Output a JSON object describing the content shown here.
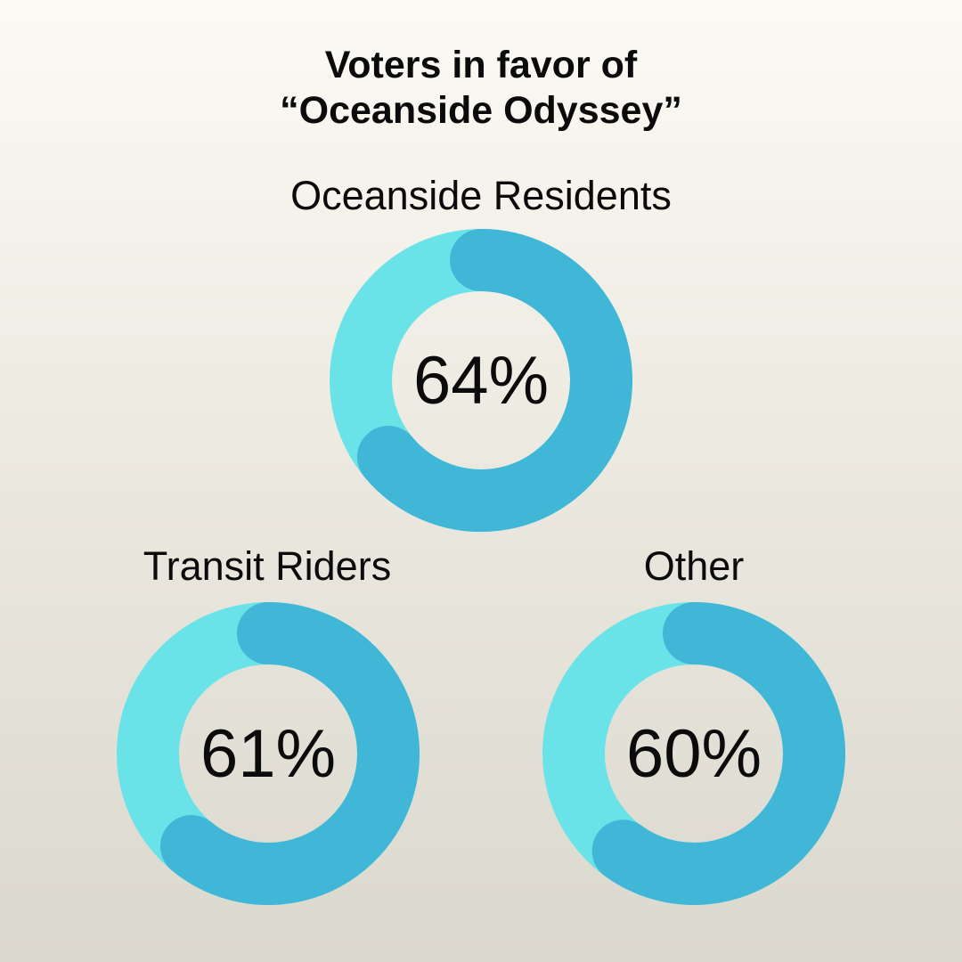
{
  "title": {
    "line1": "Voters in favor of",
    "line2": "“Oceanside Odyssey”"
  },
  "colors": {
    "track": "#6ae3e8",
    "fill": "#41b7d7"
  },
  "chart_data": {
    "type": "donut",
    "title": "Voters in favor of “Oceanside Odyssey”",
    "series": [
      {
        "name": "Oceanside Residents",
        "value": 64,
        "label": "64%"
      },
      {
        "name": "Transit Riders",
        "value": 61,
        "label": "61%"
      },
      {
        "name": "Other",
        "value": 60,
        "label": "60%"
      }
    ]
  }
}
